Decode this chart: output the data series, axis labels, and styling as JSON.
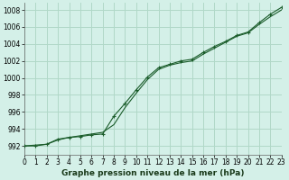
{
  "title": "Graphe pression niveau de la mer (hPa)",
  "xlabel_ticks": [
    0,
    1,
    2,
    3,
    4,
    5,
    6,
    7,
    8,
    9,
    10,
    11,
    12,
    13,
    14,
    15,
    16,
    17,
    18,
    19,
    20,
    21,
    22,
    23
  ],
  "yticks": [
    992,
    994,
    996,
    998,
    1000,
    1002,
    1004,
    1006,
    1008
  ],
  "ylim": [
    991.0,
    1008.8
  ],
  "xlim": [
    0,
    23
  ],
  "bg_color": "#d4f0e8",
  "grid_color": "#b0d8c8",
  "line_color": "#1a5c2a",
  "marker_color": "#1a5c2a",
  "smooth_x": [
    0,
    1,
    2,
    3,
    4,
    5,
    6,
    7,
    8,
    9,
    10,
    11,
    12,
    13,
    14,
    15,
    16,
    17,
    18,
    19,
    20,
    21,
    22,
    23
  ],
  "smooth_y": [
    992.0,
    992.1,
    992.2,
    992.7,
    993.0,
    993.2,
    993.4,
    993.6,
    994.5,
    996.5,
    998.2,
    999.8,
    1001.0,
    1001.5,
    1001.8,
    1002.0,
    1002.8,
    1003.5,
    1004.2,
    1004.9,
    1005.3,
    1006.3,
    1007.2,
    1008.0
  ],
  "marker_x": [
    0,
    1,
    2,
    3,
    4,
    5,
    6,
    7,
    8,
    9,
    10,
    11,
    12,
    13,
    14,
    15,
    16,
    17,
    18,
    19,
    20,
    21,
    22,
    23
  ],
  "marker_y": [
    992.0,
    992.0,
    992.2,
    992.8,
    993.0,
    993.1,
    993.3,
    993.4,
    995.5,
    997.0,
    998.6,
    1000.1,
    1001.2,
    1001.6,
    1002.0,
    1002.2,
    1003.0,
    1003.7,
    1004.3,
    1005.0,
    1005.4,
    1006.5,
    1007.5,
    1008.3
  ],
  "title_fontsize": 6.5,
  "tick_fontsize": 5.5
}
